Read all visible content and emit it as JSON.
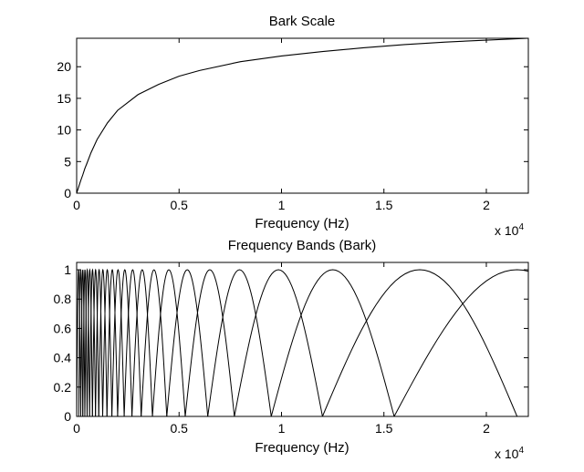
{
  "chart_data": [
    {
      "type": "line",
      "title": "Bark Scale",
      "xlabel": "Frequency (Hz)",
      "ylabel": "",
      "x_multiplier_label": {
        "base": "x 10",
        "exp": "4"
      },
      "xlim": [
        0,
        22050
      ],
      "ylim": [
        0,
        24.5
      ],
      "xticks": [
        0,
        5000,
        10000,
        15000,
        20000
      ],
      "xtick_labels": [
        "0",
        "0.5",
        "1",
        "1.5",
        "2"
      ],
      "yticks": [
        0,
        5,
        10,
        15,
        20
      ],
      "ytick_labels": [
        "0",
        "5",
        "10",
        "15",
        "20"
      ],
      "grid": false,
      "line_color": "#000000",
      "series": [
        {
          "x": [
            0,
            100,
            200,
            300,
            400,
            500,
            700,
            1000,
            1500,
            2000,
            3000,
            4000,
            5000,
            6000,
            8000,
            10000,
            12000,
            14000,
            16000,
            18000,
            20000,
            22050
          ],
          "values": [
            0,
            1.0,
            2.0,
            2.9,
            3.9,
            4.7,
            6.4,
            8.5,
            11.1,
            13.1,
            15.6,
            17.2,
            18.5,
            19.4,
            20.8,
            21.7,
            22.4,
            23.0,
            23.5,
            23.9,
            24.2,
            24.5
          ]
        }
      ]
    },
    {
      "type": "line",
      "title": "Frequency Bands (Bark)",
      "xlabel": "Frequency (Hz)",
      "ylabel": "",
      "x_multiplier_label": {
        "base": "x 10",
        "exp": "4"
      },
      "xlim": [
        0,
        22050
      ],
      "ylim": [
        0,
        1.05
      ],
      "xticks": [
        0,
        5000,
        10000,
        15000,
        20000
      ],
      "xtick_labels": [
        "0",
        "0.5",
        "1",
        "1.5",
        "2"
      ],
      "yticks": [
        0,
        0.2,
        0.4,
        0.6,
        0.8,
        1
      ],
      "ytick_labels": [
        "0",
        "0.2",
        "0.4",
        "0.6",
        "0.8",
        "1"
      ],
      "grid": false,
      "line_color": "#000000",
      "band_zero_crossings": [
        0,
        100,
        200,
        300,
        400,
        510,
        630,
        770,
        920,
        1080,
        1270,
        1480,
        1720,
        2000,
        2320,
        2700,
        3150,
        3700,
        4400,
        5300,
        6400,
        7700,
        9500,
        12000,
        15500,
        21500
      ]
    }
  ]
}
